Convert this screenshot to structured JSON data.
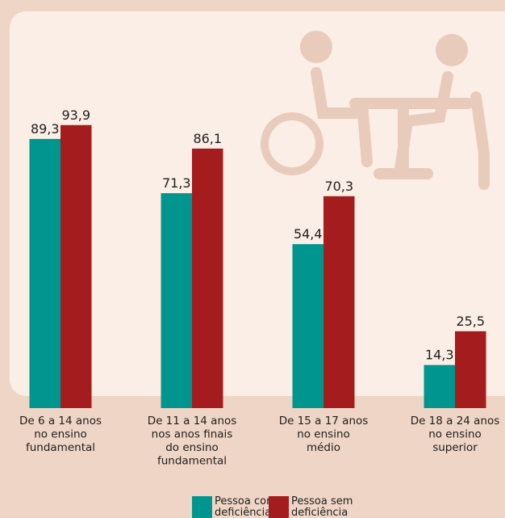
{
  "chart_data": {
    "type": "bar",
    "categories": [
      "De 6 a 14 anos\nno ensino\nfundamental",
      "De 11 a 14 anos\nnos anos finais\ndo ensino\nfundamental",
      "De 15 a 17 anos\nno ensino\nmédio",
      "De 18 a 24 anos\nno ensino\nsuperior"
    ],
    "series": [
      {
        "name": "Pessoa com\ndeficiência",
        "color": "#00968f",
        "values": [
          89.3,
          71.3,
          54.4,
          14.3
        ],
        "value_labels": [
          "89,3",
          "71,3",
          "54,4",
          "14,3"
        ]
      },
      {
        "name": "Pessoa sem\ndeficiência",
        "color": "#a51c1f",
        "values": [
          93.9,
          86.1,
          70.3,
          25.5
        ],
        "value_labels": [
          "93,9",
          "86,1",
          "70,3",
          "25,5"
        ]
      }
    ]
  }
}
